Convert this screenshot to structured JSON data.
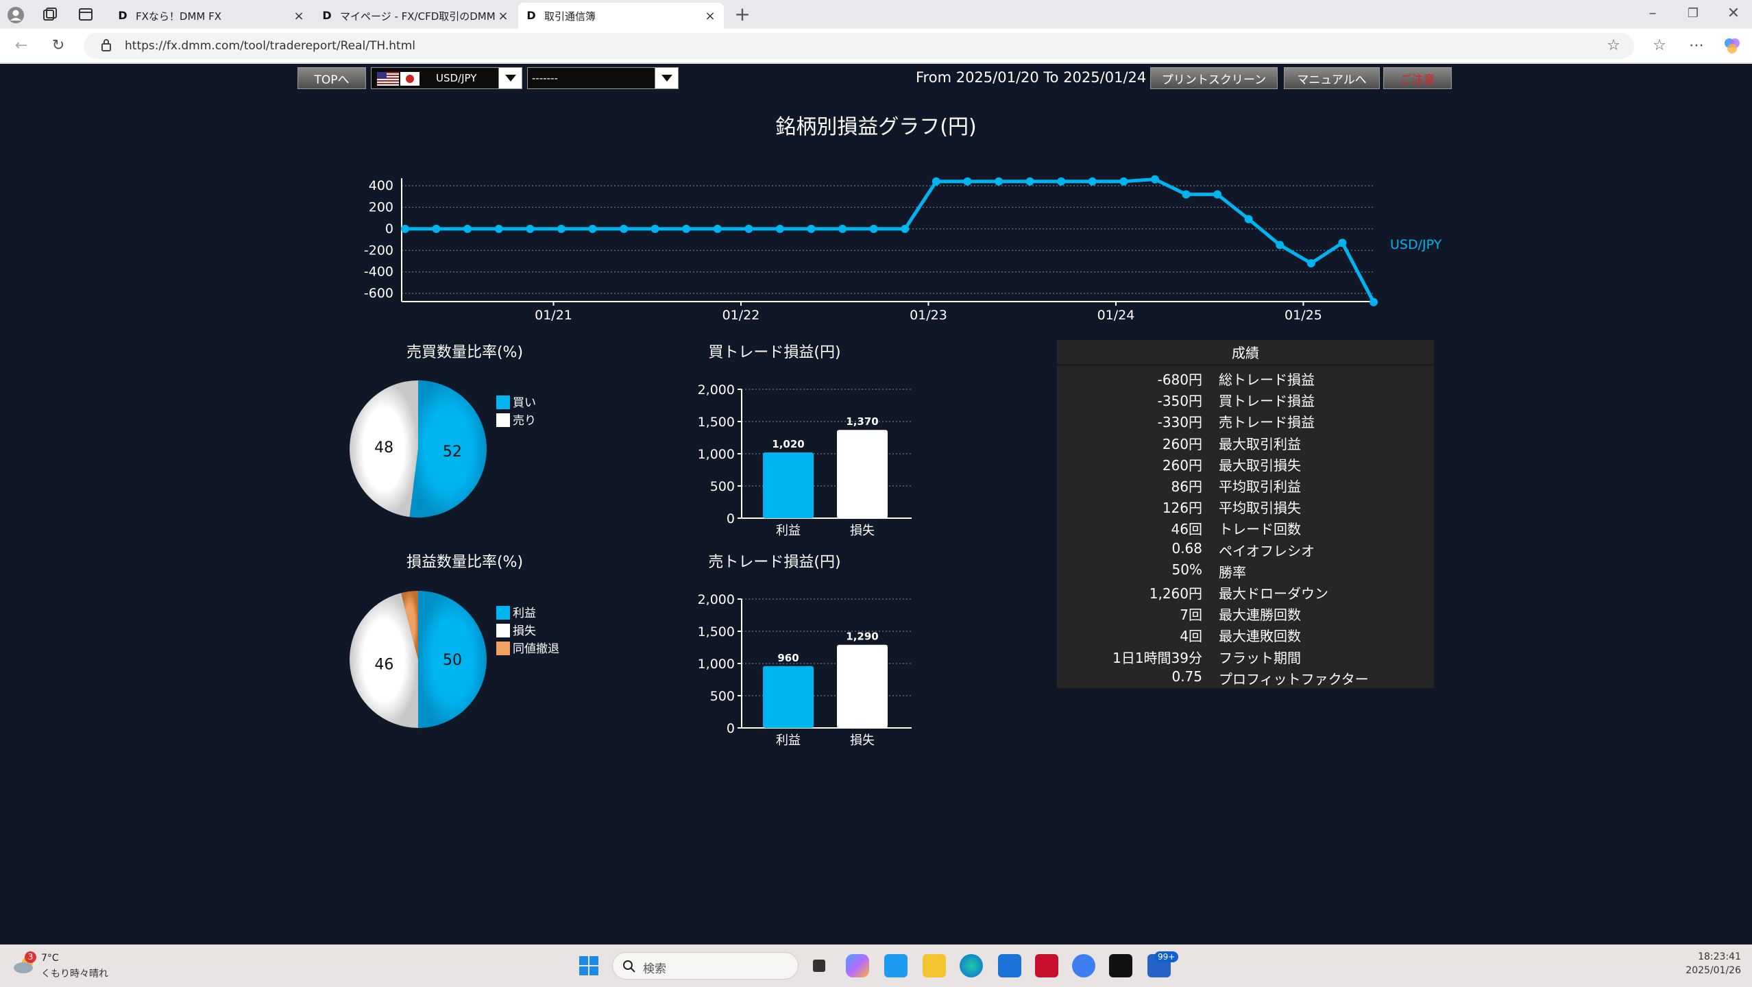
{
  "browser": {
    "tabs": [
      {
        "title": "FXなら！DMM FX"
      },
      {
        "title": "マイページ - FX/CFD取引のDMM.co"
      },
      {
        "title": "取引通信簿"
      }
    ],
    "url": "https://fx.dmm.com/tool/tradereport/Real/TH.html"
  },
  "toolbar": {
    "top_button": "TOPへ",
    "symbol": "USD/JPY",
    "second_select": "-------",
    "date_range": "From 2025/01/20 To 2025/01/24",
    "print_button": "プリントスクリーン",
    "manual_button": "マニュアルへ",
    "notice_button": "ご注意"
  },
  "line_chart": {
    "title": "銘柄別損益グラフ(円)",
    "series_name": "USD/JPY",
    "y_ticks": [
      "400",
      "200",
      "0",
      "-200",
      "-400",
      "-600"
    ],
    "x_ticks": [
      "01/21",
      "01/22",
      "01/23",
      "01/24",
      "01/25"
    ],
    "color": "#00b4f0"
  },
  "chart_data": [
    {
      "type": "line",
      "title": "銘柄別損益グラフ(円)",
      "series": [
        {
          "name": "USD/JPY",
          "x": [
            "2025-01-20 05:00",
            "2025-01-20 09:00",
            "2025-01-20 13:00",
            "2025-01-20 17:00",
            "2025-01-20 21:00",
            "2025-01-21 01:00",
            "2025-01-21 05:00",
            "2025-01-21 09:00",
            "2025-01-21 13:00",
            "2025-01-21 17:00",
            "2025-01-21 21:00",
            "2025-01-22 01:00",
            "2025-01-22 05:00",
            "2025-01-22 09:00",
            "2025-01-22 13:00",
            "2025-01-22 17:00",
            "2025-01-22 21:00",
            "2025-01-23 01:00",
            "2025-01-23 05:00",
            "2025-01-23 09:00",
            "2025-01-23 13:00",
            "2025-01-23 17:00",
            "2025-01-23 21:00",
            "2025-01-24 01:00",
            "2025-01-24 05:00",
            "2025-01-24 09:00",
            "2025-01-24 13:00",
            "2025-01-24 17:00",
            "2025-01-24 21:00",
            "2025-01-25 01:00",
            "2025-01-25 05:00",
            "2025-01-25 09:00"
          ],
          "values": [
            0,
            0,
            0,
            0,
            0,
            0,
            0,
            0,
            0,
            0,
            0,
            0,
            0,
            0,
            0,
            0,
            0,
            440,
            440,
            440,
            440,
            440,
            440,
            440,
            460,
            320,
            320,
            90,
            -150,
            -320,
            -130,
            -680
          ]
        }
      ],
      "ylim": [
        -680,
        460
      ],
      "yticks": [
        400,
        200,
        0,
        -200,
        -400,
        -600
      ],
      "x_ticks": [
        "01/21",
        "01/22",
        "01/23",
        "01/24",
        "01/25"
      ],
      "grid": true
    },
    {
      "type": "pie",
      "title": "売買数量比率(%)",
      "labels": [
        "買い",
        "売り"
      ],
      "values": [
        52,
        48
      ],
      "colors": [
        "#00b4f0",
        "#ffffff"
      ]
    },
    {
      "type": "pie",
      "title": "損益数量比率(%)",
      "labels": [
        "利益",
        "損失",
        "同値撤退"
      ],
      "values": [
        50,
        46,
        4
      ],
      "colors": [
        "#00b4f0",
        "#ffffff",
        "#f0a060"
      ]
    },
    {
      "type": "bar",
      "title": "買トレード損益(円)",
      "categories": [
        "利益",
        "損失"
      ],
      "values": [
        1020,
        1370
      ],
      "value_labels": [
        "1,020",
        "1,370"
      ],
      "ylim": [
        0,
        2000
      ],
      "yticks": [
        "2,000",
        "1,500",
        "1,000",
        "500",
        "0"
      ]
    },
    {
      "type": "bar",
      "title": "売トレード損益(円)",
      "categories": [
        "利益",
        "損失"
      ],
      "values": [
        960,
        1290
      ],
      "value_labels": [
        "960",
        "1,290"
      ],
      "ylim": [
        0,
        2000
      ],
      "yticks": [
        "2,000",
        "1,500",
        "1,000",
        "500",
        "0"
      ]
    }
  ],
  "pies": {
    "trade_ratio": {
      "title": "売買数量比率(%)",
      "legend": [
        "買い",
        "売り"
      ],
      "labels": [
        "52",
        "48"
      ]
    },
    "pl_ratio": {
      "title": "損益数量比率(%)",
      "legend": [
        "利益",
        "損失",
        "同値撤退"
      ],
      "labels": [
        "50",
        "46"
      ]
    }
  },
  "bars": {
    "buy": {
      "title": "買トレード損益(円)"
    },
    "sell": {
      "title": "売トレード損益(円)"
    }
  },
  "stats": {
    "title": "成績",
    "rows": [
      {
        "value": "-680円",
        "label": "総トレード損益"
      },
      {
        "value": "-350円",
        "label": "買トレード損益"
      },
      {
        "value": "-330円",
        "label": "売トレード損益"
      },
      {
        "value": "260円",
        "label": "最大取引利益"
      },
      {
        "value": "260円",
        "label": "最大取引損失"
      },
      {
        "value": "86円",
        "label": "平均取引利益"
      },
      {
        "value": "126円",
        "label": "平均取引損失"
      },
      {
        "value": "46回",
        "label": "トレード回数"
      },
      {
        "value": "0.68",
        "label": "ペイオフレシオ"
      },
      {
        "value": "50%",
        "label": "勝率"
      },
      {
        "value": "1,260円",
        "label": "最大ドローダウン"
      },
      {
        "value": "7回",
        "label": "最大連勝回数"
      },
      {
        "value": "4回",
        "label": "最大連敗回数"
      },
      {
        "value": "1日1時間39分",
        "label": "フラット期間"
      },
      {
        "value": "0.75",
        "label": "プロフィットファクター"
      }
    ]
  },
  "taskbar": {
    "weather_temp": "7°C",
    "weather_desc": "くもり時々晴れ",
    "weather_badge": "3",
    "search_placeholder": "検索",
    "clock_time": "18:23:41",
    "clock_date": "2025/01/26",
    "notification_badge": "99+"
  }
}
